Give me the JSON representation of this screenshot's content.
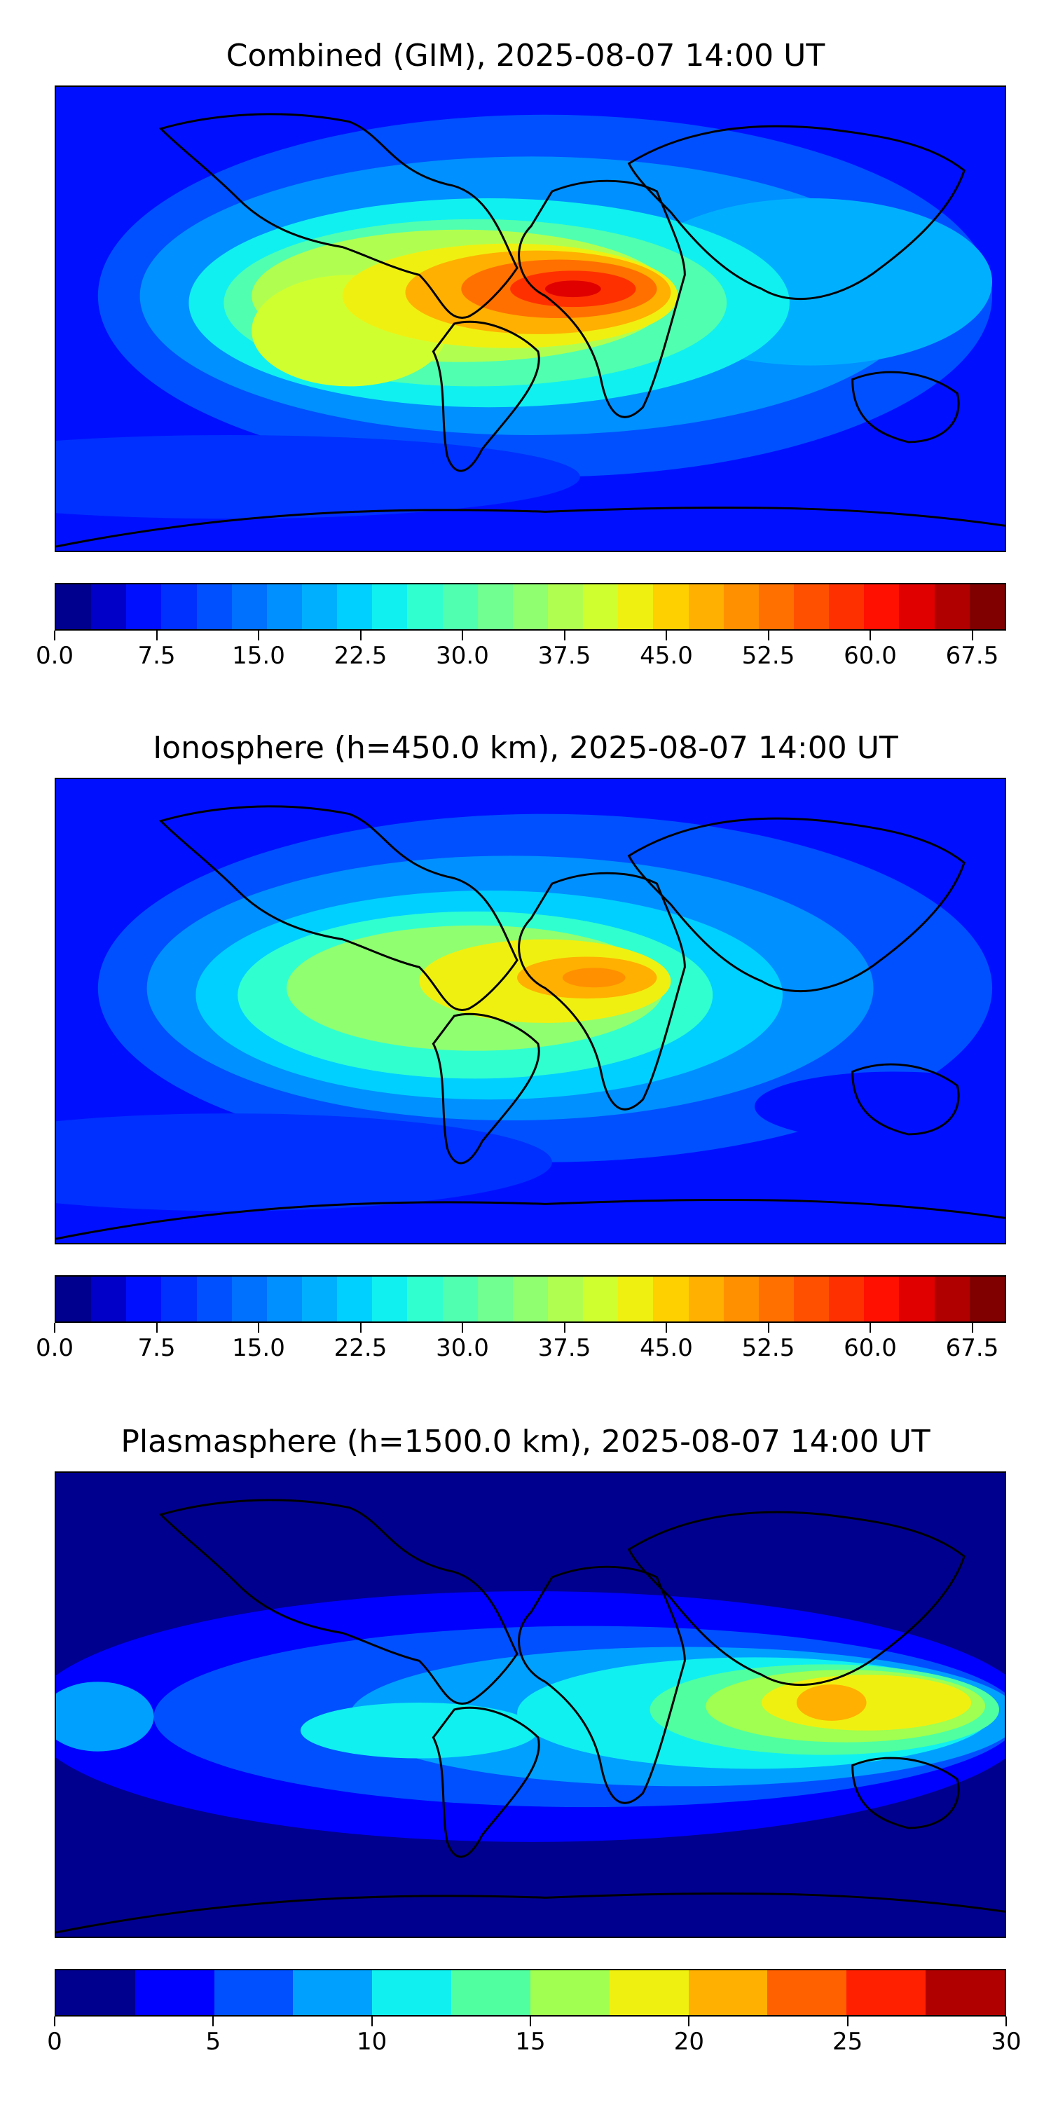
{
  "panels": [
    {
      "title": "Combined (GIM), 2025-08-07 14:00 UT",
      "colorbar": {
        "min": 0,
        "max": 70,
        "ticks": [
          "0.0",
          "7.5",
          "15.0",
          "22.5",
          "30.0",
          "37.5",
          "45.0",
          "52.5",
          "60.0",
          "67.5"
        ],
        "tick_values": [
          0,
          7.5,
          15,
          22.5,
          30,
          37.5,
          45,
          52.5,
          60,
          67.5
        ],
        "colors": [
          "#00008f",
          "#0000c8",
          "#0010ff",
          "#0030ff",
          "#0050ff",
          "#0070ff",
          "#0090ff",
          "#00b0ff",
          "#00d0ff",
          "#10f0f0",
          "#30ffd0",
          "#50ffb0",
          "#70ff90",
          "#90ff70",
          "#b0ff50",
          "#d0ff30",
          "#f0f010",
          "#ffd000",
          "#ffb000",
          "#ff9000",
          "#ff7000",
          "#ff5000",
          "#ff3000",
          "#ff1000",
          "#e00000",
          "#b00000",
          "#800000"
        ]
      },
      "peak": {
        "lon": 10,
        "lat": 12,
        "value": 67
      }
    },
    {
      "title": "Ionosphere  (h=450.0 km), 2025-08-07 14:00 UT",
      "colorbar": {
        "min": 0,
        "max": 70,
        "ticks": [
          "0.0",
          "7.5",
          "15.0",
          "22.5",
          "30.0",
          "37.5",
          "45.0",
          "52.5",
          "60.0",
          "67.5"
        ],
        "tick_values": [
          0,
          7.5,
          15,
          22.5,
          30,
          37.5,
          45,
          52.5,
          60,
          67.5
        ],
        "colors": [
          "#00008f",
          "#0000c8",
          "#0010ff",
          "#0030ff",
          "#0050ff",
          "#0070ff",
          "#0090ff",
          "#00b0ff",
          "#00d0ff",
          "#10f0f0",
          "#30ffd0",
          "#50ffb0",
          "#70ff90",
          "#90ff70",
          "#b0ff50",
          "#d0ff30",
          "#f0f010",
          "#ffd000",
          "#ffb000",
          "#ff9000",
          "#ff7000",
          "#ff5000",
          "#ff3000",
          "#ff1000",
          "#e00000",
          "#b00000",
          "#800000"
        ]
      },
      "peak": {
        "lon": 15,
        "lat": 15,
        "value": 52
      }
    },
    {
      "title": "Plasmasphere (h=1500.0 km), 2025-08-07 14:00 UT",
      "colorbar": {
        "min": 0,
        "max": 30,
        "ticks": [
          "0",
          "5",
          "10",
          "15",
          "20",
          "25",
          "30"
        ],
        "tick_values": [
          0,
          5,
          10,
          15,
          20,
          25,
          30
        ],
        "colors": [
          "#00008f",
          "#0000ff",
          "#0050ff",
          "#00a0ff",
          "#10f0f0",
          "#50ffa0",
          "#a0ff50",
          "#f0f010",
          "#ffb000",
          "#ff6000",
          "#ff2000",
          "#b00000"
        ]
      },
      "peak": {
        "lon": 105,
        "lat": 15,
        "value": 25
      }
    }
  ]
}
